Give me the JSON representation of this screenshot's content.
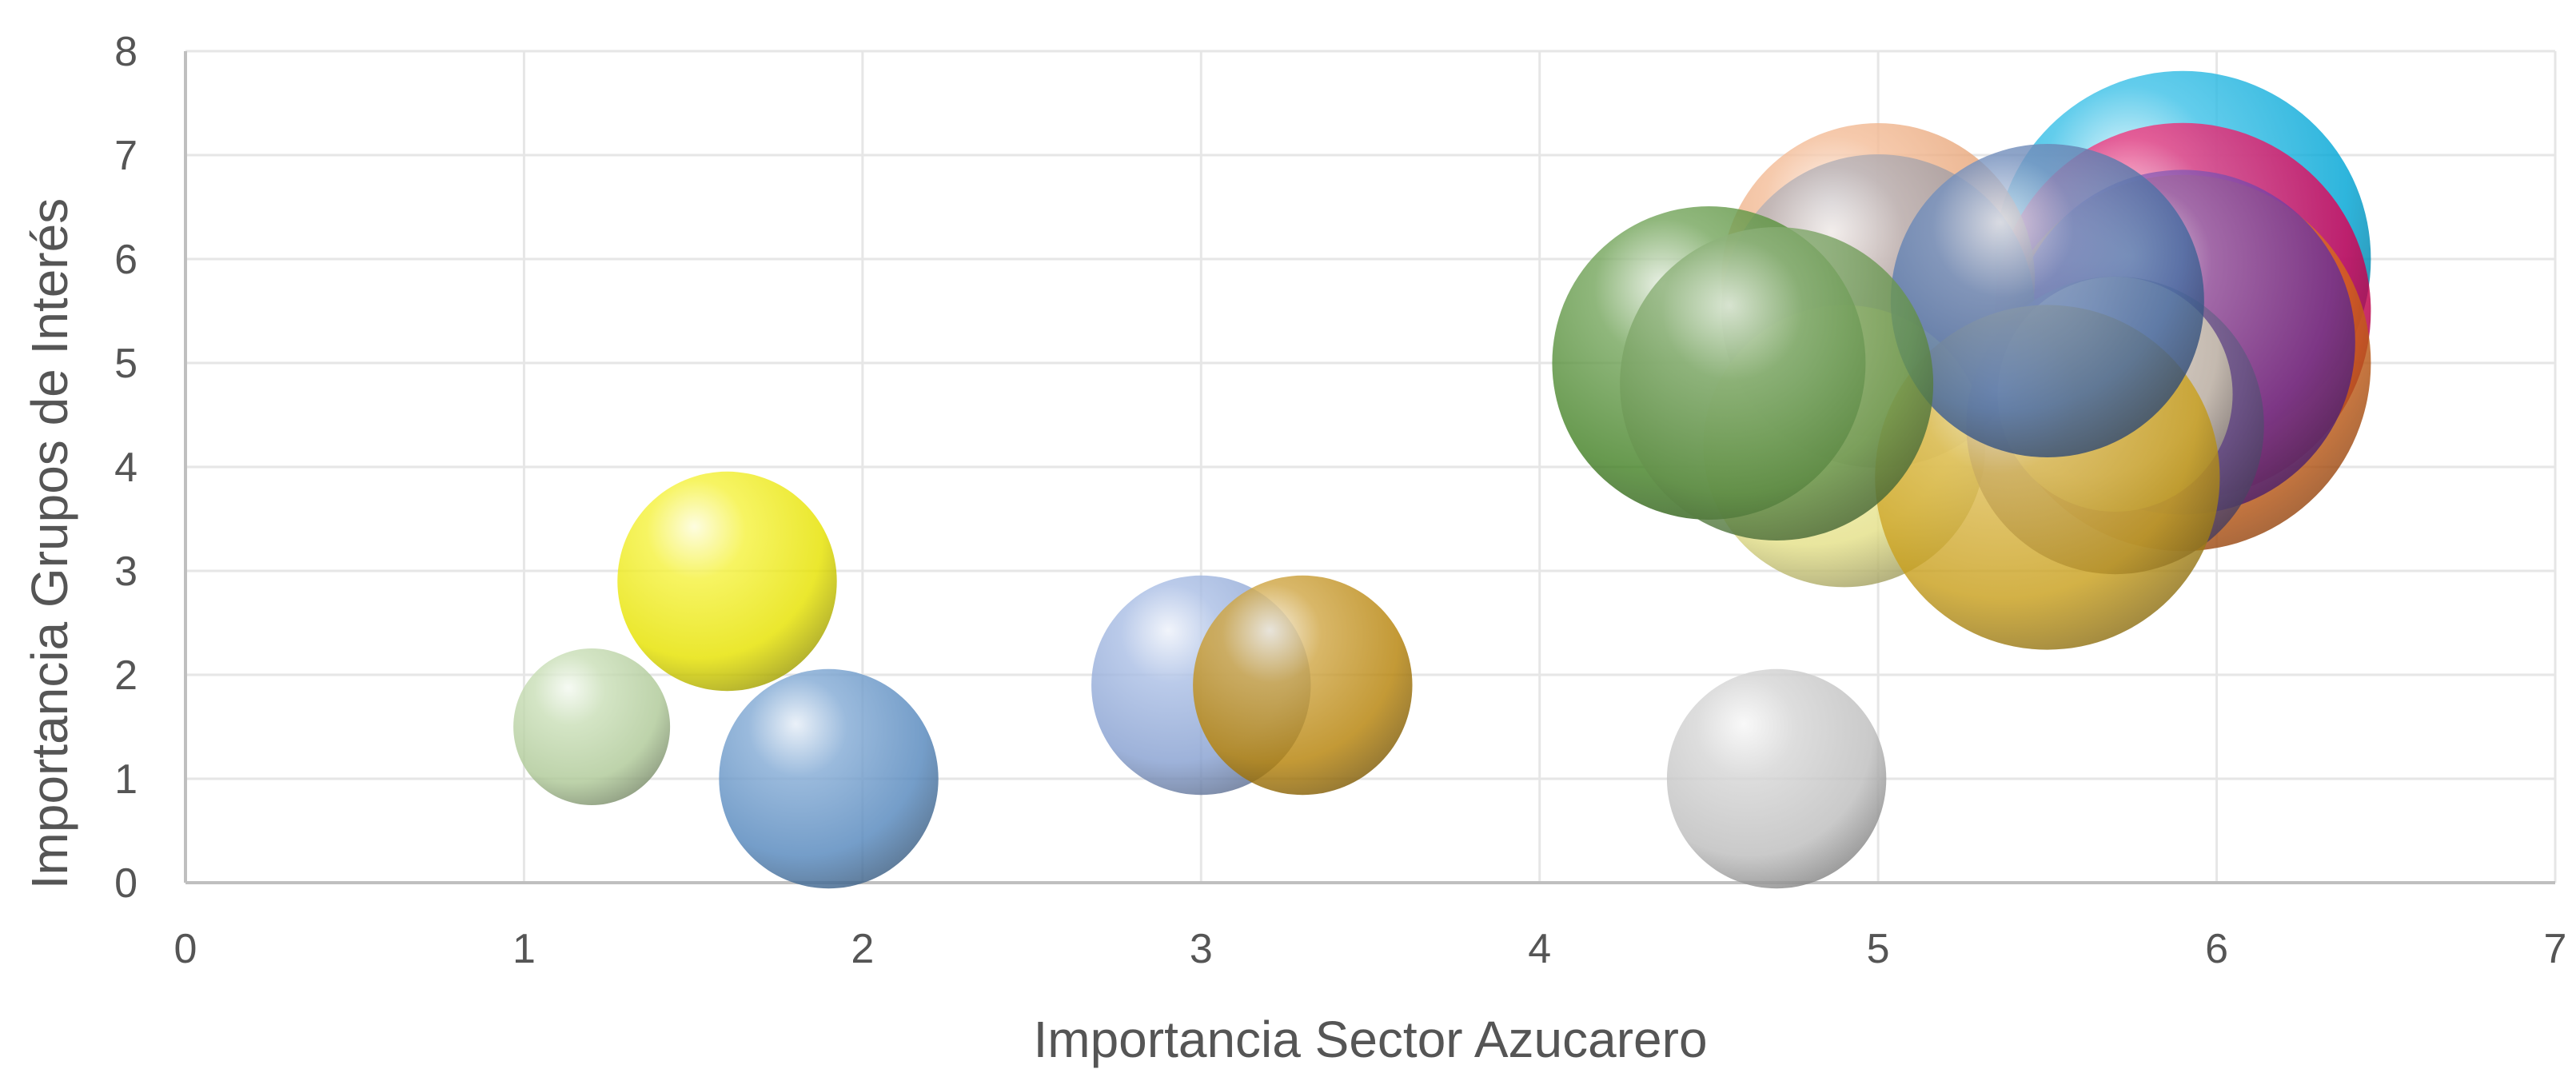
{
  "chart_data": {
    "type": "scatter",
    "variant": "bubble",
    "title": "",
    "xlabel": "Importancia Sector Azucarero",
    "ylabel": "Importancia Grupos de Interés",
    "xlim": [
      0,
      7
    ],
    "ylim": [
      0,
      8
    ],
    "x_ticks": [
      "0",
      "1",
      "2",
      "3",
      "4",
      "5",
      "6",
      "7"
    ],
    "y_ticks": [
      "0",
      "1",
      "2",
      "3",
      "4",
      "5",
      "6",
      "7",
      "8"
    ],
    "grid": true,
    "legend": "none",
    "points": [
      {
        "x": 1.2,
        "y": 1.5,
        "size": 1.0,
        "color": "#b8d4a0"
      },
      {
        "x": 1.6,
        "y": 2.9,
        "size": 1.4,
        "color": "#f2ee00"
      },
      {
        "x": 1.9,
        "y": 1.0,
        "size": 1.4,
        "color": "#5b8fc7"
      },
      {
        "x": 3.0,
        "y": 1.9,
        "size": 1.4,
        "color": "#8fa9dc"
      },
      {
        "x": 3.3,
        "y": 1.9,
        "size": 1.4,
        "color": "#c08a0a"
      },
      {
        "x": 4.7,
        "y": 1.0,
        "size": 1.4,
        "color": "#c8c8c8"
      },
      {
        "x": 5.9,
        "y": 6.0,
        "size": 2.4,
        "color": "#00aee0"
      },
      {
        "x": 5.9,
        "y": 5.5,
        "size": 2.4,
        "color": "#e8005a"
      },
      {
        "x": 5.9,
        "y": 5.0,
        "size": 2.4,
        "color": "#e06a1a"
      },
      {
        "x": 5.9,
        "y": 5.2,
        "size": 2.2,
        "color": "#7030a0"
      },
      {
        "x": 5.0,
        "y": 5.8,
        "size": 2.0,
        "color": "#f0a878"
      },
      {
        "x": 5.0,
        "y": 5.5,
        "size": 2.0,
        "color": "#a09aa0"
      },
      {
        "x": 4.9,
        "y": 4.2,
        "size": 1.8,
        "color": "#f0ec90"
      },
      {
        "x": 5.7,
        "y": 4.4,
        "size": 1.9,
        "color": "#6a5a8a"
      },
      {
        "x": 5.7,
        "y": 4.7,
        "size": 1.5,
        "color": "#e0d8c0"
      },
      {
        "x": 5.5,
        "y": 3.9,
        "size": 2.2,
        "color": "#d4a820"
      },
      {
        "x": 5.5,
        "y": 5.6,
        "size": 2.0,
        "color": "#4a6ea8"
      },
      {
        "x": 4.5,
        "y": 5.0,
        "size": 2.0,
        "color": "#4a8a2a"
      },
      {
        "x": 4.7,
        "y": 4.8,
        "size": 2.0,
        "color": "#6a9a50"
      }
    ]
  }
}
